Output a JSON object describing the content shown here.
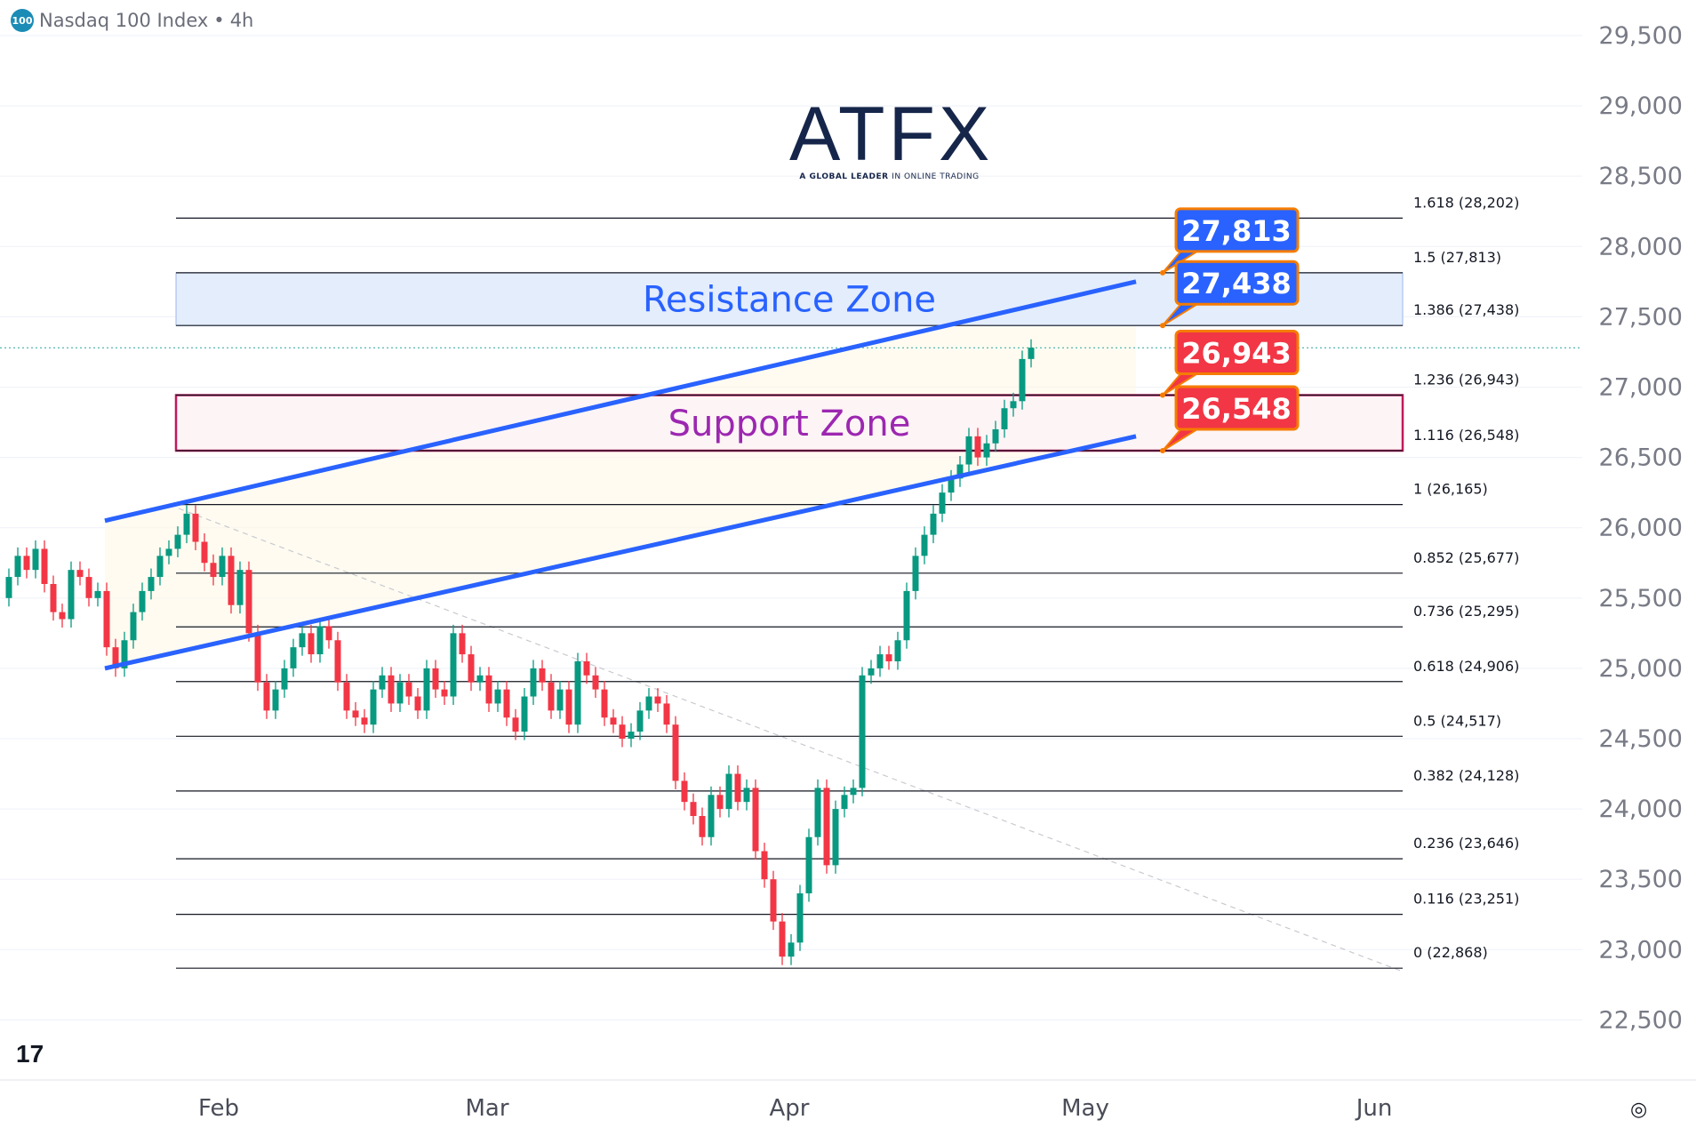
{
  "header": {
    "symbol_badge": "100",
    "title": "Nasdaq 100 Index",
    "separator": "•",
    "interval": "4h"
  },
  "logo": {
    "name": "ATFX",
    "tagline_bold": "A GLOBAL LEADER",
    "tagline_rest": "IN ONLINE TRADING"
  },
  "colors": {
    "up": "#089981",
    "down": "#f23645",
    "channel": "#2962ff",
    "resistance_fill": "#e3edfc",
    "support_border": "#c2185b",
    "support_fill": "#fdf4f6",
    "callout_blue": "#2962ff",
    "callout_red": "#f23645",
    "callout_border": "#f57c00",
    "current_price": "#26a69a"
  },
  "chart_data": {
    "type": "candlestick",
    "title": "Nasdaq 100 Index • 4h",
    "ylim": [
      22300,
      29700
    ],
    "y_ticks": [
      22500,
      23000,
      23500,
      24000,
      24500,
      25000,
      25500,
      26000,
      26500,
      27000,
      27500,
      28000,
      28500,
      29000,
      29500
    ],
    "y_tick_labels": [
      "22,500",
      "23,000",
      "23,500",
      "24,000",
      "24,500",
      "25,000",
      "25,500",
      "26,000",
      "26,500",
      "27,000",
      "27,500",
      "28,000",
      "28,500",
      "29,000",
      "29,500"
    ],
    "x_labels": [
      "Feb",
      "Mar",
      "Apr",
      "May",
      "Jun"
    ],
    "start_open": 25500,
    "closes": [
      25650,
      25800,
      25700,
      25850,
      25600,
      25400,
      25350,
      25700,
      25650,
      25500,
      25550,
      25150,
      25000,
      25200,
      25400,
      25550,
      25650,
      25800,
      25850,
      25950,
      26100,
      25900,
      25750,
      25650,
      25800,
      25450,
      25700,
      25250,
      24900,
      24700,
      24850,
      25000,
      25150,
      25250,
      25100,
      25300,
      25200,
      24900,
      24700,
      24650,
      24600,
      24850,
      24950,
      24750,
      24900,
      24800,
      24700,
      25000,
      24850,
      24800,
      25250,
      25100,
      24900,
      24950,
      24750,
      24850,
      24650,
      24550,
      24800,
      25000,
      24900,
      24700,
      24850,
      24600,
      25050,
      24950,
      24850,
      24650,
      24600,
      24500,
      24550,
      24700,
      24800,
      24750,
      24600,
      24200,
      24050,
      23950,
      23800,
      24100,
      24000,
      24250,
      24050,
      24150,
      23700,
      23500,
      23200,
      22950,
      23050,
      23400,
      23800,
      24150,
      23600,
      24000,
      24100,
      24150,
      24950,
      25000,
      25100,
      25050,
      25200,
      25550,
      25800,
      25950,
      26100,
      26250,
      26350,
      26450,
      26650,
      26500,
      26600,
      26700,
      26850,
      26900,
      27200,
      27280
    ],
    "current_price": 27280,
    "fib_levels": [
      {
        "ratio": "1.618",
        "price": 28202,
        "label": "1.618 (28,202)"
      },
      {
        "ratio": "1.5",
        "price": 27813,
        "label": "1.5 (27,813)"
      },
      {
        "ratio": "1.386",
        "price": 27438,
        "label": "1.386 (27,438)"
      },
      {
        "ratio": "1.236",
        "price": 26943,
        "label": "1.236 (26,943)"
      },
      {
        "ratio": "1.116",
        "price": 26548,
        "label": "1.116 (26,548)"
      },
      {
        "ratio": "1",
        "price": 26165,
        "label": "1 (26,165)"
      },
      {
        "ratio": "0.852",
        "price": 25677,
        "label": "0.852 (25,677)"
      },
      {
        "ratio": "0.736",
        "price": 25295,
        "label": "0.736 (25,295)"
      },
      {
        "ratio": "0.618",
        "price": 24906,
        "label": "0.618 (24,906)"
      },
      {
        "ratio": "0.5",
        "price": 24517,
        "label": "0.5 (24,517)"
      },
      {
        "ratio": "0.382",
        "price": 24128,
        "label": "0.382 (24,128)"
      },
      {
        "ratio": "0.236",
        "price": 23646,
        "label": "0.236 (23,646)"
      },
      {
        "ratio": "0.116",
        "price": 23251,
        "label": "0.116 (23,251)"
      },
      {
        "ratio": "0",
        "price": 22868,
        "label": "0 (22,868)"
      }
    ],
    "zones": [
      {
        "name": "Resistance Zone",
        "top": 27813,
        "bottom": 27438
      },
      {
        "name": "Support Zone",
        "top": 26943,
        "bottom": 26548
      }
    ],
    "channel": {
      "upper": [
        [
          26050,
          27750
        ]
      ],
      "lower": [
        [
          25000,
          26650
        ]
      ]
    },
    "callouts": [
      {
        "label": "27,813",
        "price": 27813,
        "color": "blue"
      },
      {
        "label": "27,438",
        "price": 27438,
        "color": "blue"
      },
      {
        "label": "26,943",
        "price": 26943,
        "color": "red"
      },
      {
        "label": "26,548",
        "price": 26548,
        "color": "red"
      }
    ]
  }
}
